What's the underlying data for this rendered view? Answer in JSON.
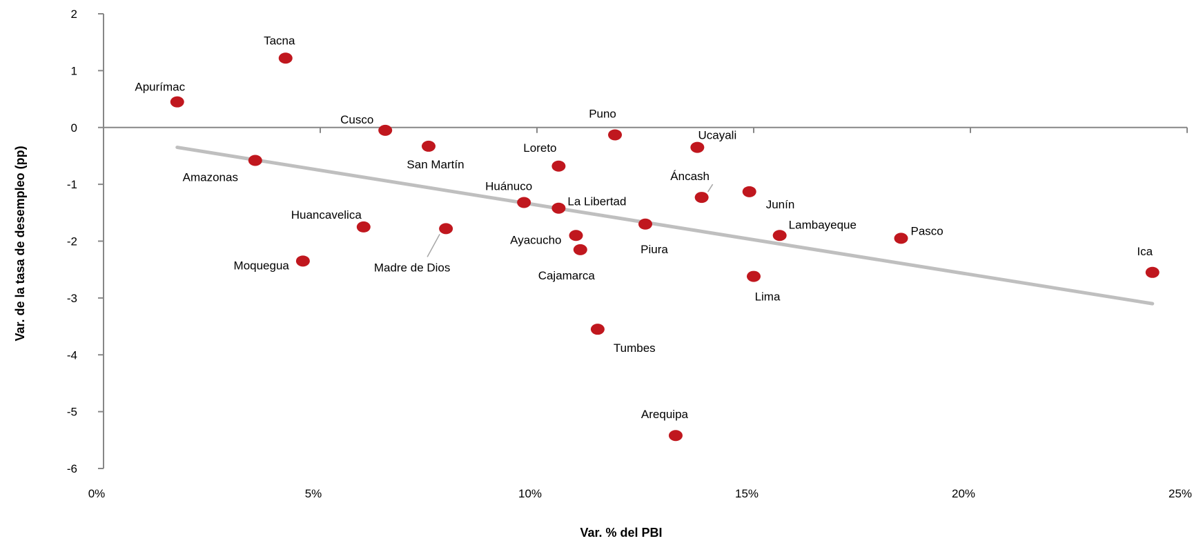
{
  "chart_data": {
    "type": "scatter",
    "title": "",
    "xlabel": "Var. % del PBI",
    "ylabel": "Var. de la tasa de desempleo (pp)",
    "xlim": [
      0,
      25
    ],
    "ylim": [
      -6,
      2
    ],
    "x_unit": "percent",
    "x_ticks": [
      "0%",
      "5%",
      "10%",
      "15%",
      "20%",
      "25%"
    ],
    "y_ticks": [
      "2",
      "1",
      "0",
      "-1",
      "-2",
      "-3",
      "-4",
      "-5",
      "-6"
    ],
    "grid": false,
    "legend": "none",
    "point_color": "#C0171E",
    "trendline_color": "#BFBFBF",
    "trendline": {
      "x": [
        1.7,
        24.2
      ],
      "y": [
        -0.35,
        -3.1
      ]
    },
    "points": [
      {
        "name": "Apurímac",
        "x": 1.7,
        "y": 0.45
      },
      {
        "name": "Amazonas",
        "x": 3.5,
        "y": -0.58
      },
      {
        "name": "Tacna",
        "x": 4.2,
        "y": 1.22
      },
      {
        "name": "Moquegua",
        "x": 4.6,
        "y": -2.35
      },
      {
        "name": "Huancavelica",
        "x": 6.0,
        "y": -1.75
      },
      {
        "name": "Cusco",
        "x": 6.5,
        "y": -0.05
      },
      {
        "name": "San Martín",
        "x": 7.5,
        "y": -0.33
      },
      {
        "name": "Madre de Dios",
        "x": 7.9,
        "y": -1.78
      },
      {
        "name": "Huánuco",
        "x": 9.7,
        "y": -1.32
      },
      {
        "name": "Loreto",
        "x": 10.5,
        "y": -0.68
      },
      {
        "name": "La Libertad",
        "x": 10.5,
        "y": -1.42
      },
      {
        "name": "Ayacucho",
        "x": 10.9,
        "y": -1.9
      },
      {
        "name": "Cajamarca",
        "x": 11.0,
        "y": -2.15
      },
      {
        "name": "Tumbes",
        "x": 11.4,
        "y": -3.55
      },
      {
        "name": "Puno",
        "x": 11.8,
        "y": -0.13
      },
      {
        "name": "Piura",
        "x": 12.5,
        "y": -1.7
      },
      {
        "name": "Arequipa",
        "x": 13.2,
        "y": -5.42
      },
      {
        "name": "Ucayali",
        "x": 13.7,
        "y": -0.35
      },
      {
        "name": "Áncash",
        "x": 13.8,
        "y": -1.23
      },
      {
        "name": "Junín",
        "x": 14.9,
        "y": -1.13
      },
      {
        "name": "Lima",
        "x": 15.0,
        "y": -2.62
      },
      {
        "name": "Lambayeque",
        "x": 15.6,
        "y": -1.9
      },
      {
        "name": "Pasco",
        "x": 18.4,
        "y": -1.95
      },
      {
        "name": "Ica",
        "x": 24.2,
        "y": -2.55
      }
    ]
  }
}
